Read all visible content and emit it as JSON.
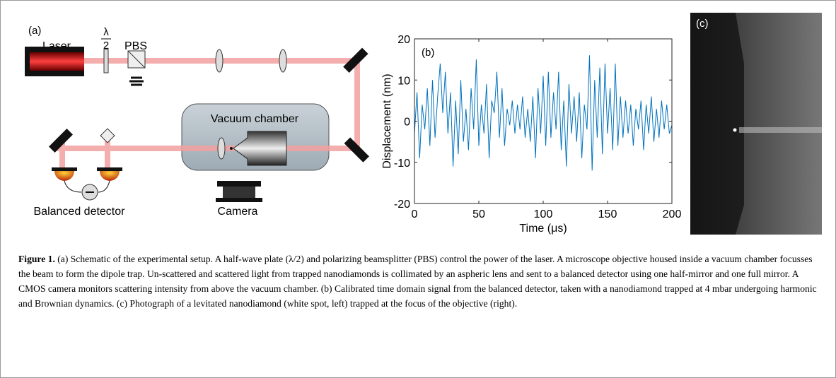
{
  "schematic": {
    "panel_label": "(a)",
    "laser": "Laser",
    "waveplate_numerator": "λ",
    "waveplate_denominator": "2",
    "pbs": "PBS",
    "chamber": "Vacuum chamber",
    "detector": "Balanced detector",
    "camera": "Camera"
  },
  "chart_data": {
    "type": "line",
    "panel_label": "(b)",
    "xlabel": "Time (μs)",
    "ylabel": "Displacement (nm)",
    "color": "#0072bd",
    "x": [
      0,
      2,
      4,
      6,
      8,
      10,
      12,
      14,
      16,
      18,
      20,
      22,
      24,
      26,
      28,
      30,
      32,
      34,
      36,
      38,
      40,
      42,
      44,
      46,
      48,
      50,
      52,
      54,
      56,
      58,
      60,
      62,
      64,
      66,
      68,
      70,
      72,
      74,
      76,
      78,
      80,
      82,
      84,
      86,
      88,
      90,
      92,
      94,
      96,
      98,
      100,
      102,
      104,
      106,
      108,
      110,
      112,
      114,
      116,
      118,
      120,
      122,
      124,
      126,
      128,
      130,
      132,
      134,
      136,
      138,
      140,
      142,
      144,
      146,
      148,
      150,
      152,
      154,
      156,
      158,
      160,
      162,
      164,
      166,
      168,
      170,
      172,
      174,
      176,
      178,
      180,
      182,
      184,
      186,
      188,
      190,
      192,
      194,
      196,
      198,
      200
    ],
    "values": [
      -3,
      7,
      -9,
      4,
      -2,
      8,
      -6,
      10,
      -4,
      6,
      14,
      2,
      12,
      -3,
      7,
      -11,
      5,
      -8,
      10,
      -5,
      3,
      -7,
      8,
      -2,
      15,
      -6,
      4,
      -3,
      9,
      -9,
      5,
      2,
      12,
      -4,
      8,
      -6,
      3,
      -1,
      5,
      -3,
      4,
      -2,
      6,
      -4,
      3,
      -5,
      6,
      -9,
      8,
      -3,
      11,
      -6,
      12,
      -4,
      7,
      -2,
      12,
      -7,
      5,
      -11,
      9,
      -3,
      6,
      -5,
      7,
      -9,
      4,
      -2,
      16,
      -12,
      10,
      -4,
      13,
      -8,
      14,
      -3,
      8,
      -7,
      14,
      -6,
      6,
      -4,
      5,
      -3,
      4,
      -6,
      3,
      -2,
      5,
      -7,
      4,
      -3,
      6,
      -5,
      3,
      -4,
      5,
      -2,
      4,
      -3,
      -1
    ],
    "xlim": [
      0,
      200
    ],
    "ylim": [
      -20,
      20
    ],
    "xticks": [
      0,
      50,
      100,
      150,
      200
    ],
    "yticks": [
      -20,
      -10,
      0,
      10,
      20
    ]
  },
  "photo": {
    "panel_label": "(c)"
  },
  "caption": {
    "label": "Figure 1.",
    "text": " (a) Schematic of the experimental setup. A half-wave plate (λ/2) and polarizing beamsplitter (PBS) control the power of the laser. A microscope objective housed inside a vacuum chamber focusses the beam to form the dipole trap. Un-scattered and scattered light from trapped nanodiamonds is collimated by an aspheric lens and sent to a balanced detector using one half-mirror and one full mirror. A CMOS camera monitors scattering intensity from above the vacuum chamber. (b) Calibrated time domain signal from the balanced detector, taken with a nanodiamond trapped at 4 mbar undergoing harmonic and Brownian dynamics. (c) Photograph of a levitated nanodiamond (white spot, left) trapped at the focus of the objective (right)."
  }
}
